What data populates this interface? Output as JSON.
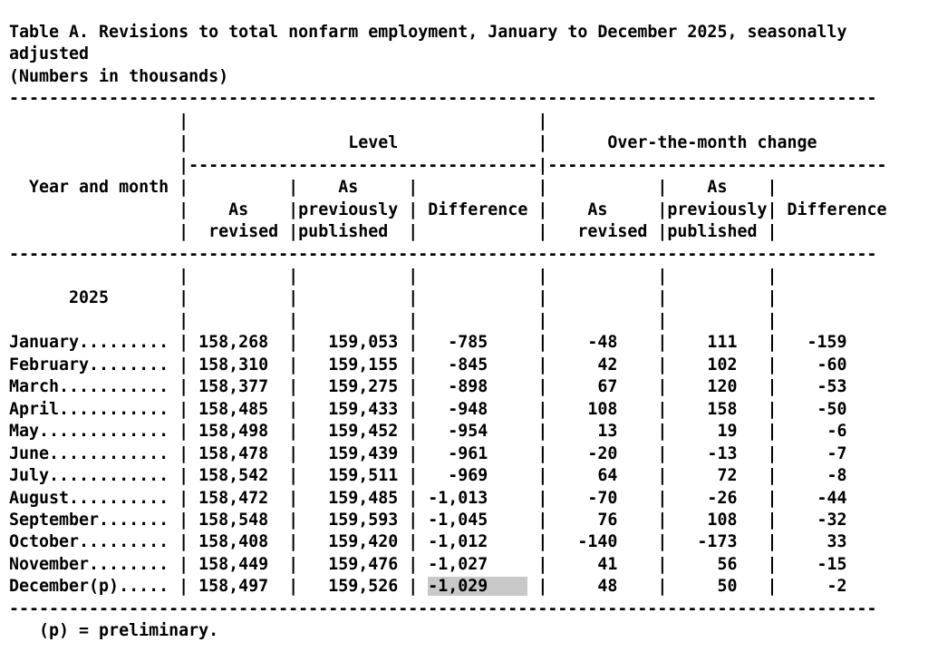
{
  "document": {
    "title_lines": [
      "Table A. Revisions to total nonfarm employment, January to December 2025, seasonally",
      "adjusted",
      "(Numbers in thousands)"
    ],
    "footnote": "(p) = preliminary.",
    "colors": {
      "text": "#000000",
      "background": "#ffffff",
      "highlight": "#c8c8c8"
    }
  },
  "table": {
    "stub_header": "Year and month",
    "year_label": "2025",
    "group_headers": [
      "Level",
      "Over-the-month change"
    ],
    "header_parts": {
      "as": "As",
      "revised": "revised",
      "previously": "previously",
      "published": "published",
      "difference": "Difference"
    },
    "columns": [
      "month",
      "level_as_revised",
      "level_as_previously_published",
      "level_difference",
      "otm_as_revised",
      "otm_as_previously_published",
      "otm_difference"
    ],
    "rows": [
      [
        "January",
        "158,268",
        "159,053",
        "-785",
        "-48",
        "111",
        "-159"
      ],
      [
        "February",
        "158,310",
        "159,155",
        "-845",
        "42",
        "102",
        "-60"
      ],
      [
        "March",
        "158,377",
        "159,275",
        "-898",
        "67",
        "120",
        "-53"
      ],
      [
        "April",
        "158,485",
        "159,433",
        "-948",
        "108",
        "158",
        "-50"
      ],
      [
        "May",
        "158,498",
        "159,452",
        "-954",
        "13",
        "19",
        "-6"
      ],
      [
        "June",
        "158,478",
        "159,439",
        "-961",
        "-20",
        "-13",
        "-7"
      ],
      [
        "July",
        "158,542",
        "159,511",
        "-969",
        "64",
        "72",
        "-8"
      ],
      [
        "August",
        "158,472",
        "159,485",
        "-1,013",
        "-70",
        "-26",
        "-44"
      ],
      [
        "September",
        "158,548",
        "159,593",
        "-1,045",
        "76",
        "108",
        "-32"
      ],
      [
        "October",
        "158,408",
        "159,420",
        "-1,012",
        "-140",
        "-173",
        "33"
      ],
      [
        "November",
        "158,449",
        "159,476",
        "-1,027",
        "41",
        "56",
        "-15"
      ],
      [
        "December(p)",
        "158,497",
        "159,526",
        "-1,029",
        "48",
        "50",
        "-2"
      ]
    ],
    "highlighted_cell": {
      "row": "December(p)",
      "column": "level_difference",
      "value": "-1,029"
    }
  }
}
